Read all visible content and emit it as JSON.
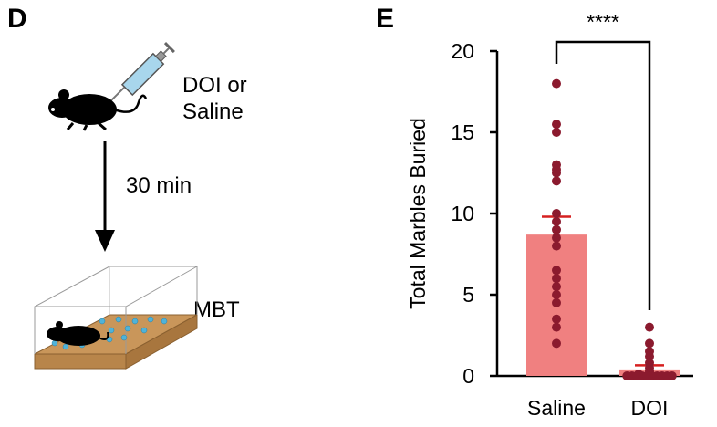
{
  "panels": {
    "left": {
      "letter": "D",
      "drug_line1": "DOI or",
      "drug_line2": "Saline",
      "time_label": "30 min",
      "test_label": "MBT"
    },
    "right": {
      "letter": "E",
      "significance": "****"
    }
  },
  "colors": {
    "saline_bar": "#f08080",
    "doi_bar": "#f08080",
    "points": "#8b1a2e",
    "error_bar": "#d62020"
  },
  "chart_data": {
    "type": "bar",
    "title": "",
    "xlabel": "",
    "ylabel": "Total Marbles Buried",
    "ylim": [
      0,
      20
    ],
    "yticks": [
      0,
      5,
      10,
      15,
      20
    ],
    "categories": [
      "Saline",
      "DOI"
    ],
    "values": [
      8.7,
      0.4
    ],
    "sem": [
      1.1,
      0.25
    ],
    "points": [
      [
        18,
        15.5,
        15,
        13,
        12.7,
        12.5,
        12,
        10,
        9.5,
        9,
        8.5,
        8,
        6.5,
        6,
        5.5,
        5,
        4.5,
        3.5,
        3,
        2
      ],
      [
        3,
        2,
        1.5,
        1.2,
        0.8,
        0.5,
        0.3,
        0.2,
        0.1,
        0.1,
        0,
        0,
        0,
        0,
        0,
        0,
        0,
        0,
        0,
        0
      ]
    ]
  }
}
